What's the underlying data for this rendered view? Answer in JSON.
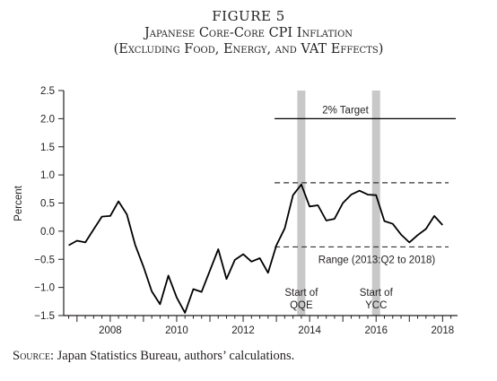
{
  "figure": {
    "label": "FIGURE 5",
    "title": "Japanese Core-Core CPI Inflation",
    "subtitle": "(Excluding Food, Energy, and VAT Effects)"
  },
  "source": {
    "label": "Source:",
    "text": "Japan Statistics Bureau, authors’ calculations."
  },
  "chart_data": {
    "type": "line",
    "ylabel": "Percent",
    "xlabel": "",
    "xlim": [
      2006.6,
      2018.45
    ],
    "ylim": [
      -1.5,
      2.5
    ],
    "x_ticks": [
      2008,
      2010,
      2012,
      2014,
      2016,
      2018
    ],
    "y_ticks": [
      -1.5,
      -1.0,
      -0.5,
      0.0,
      0.5,
      1.0,
      1.5,
      2.0,
      2.5
    ],
    "y_tick_labels": [
      "−1.5",
      "−1.0",
      "−0.5",
      "0.0",
      "0.5",
      "1.0",
      "1.5",
      "2.0",
      "2.5"
    ],
    "grid": false,
    "series": [
      {
        "name": "",
        "color": "#000000",
        "x": [
          2006.75,
          2007.0,
          2007.25,
          2007.5,
          2007.75,
          2008.0,
          2008.25,
          2008.5,
          2008.75,
          2009.0,
          2009.25,
          2009.5,
          2009.75,
          2010.0,
          2010.25,
          2010.5,
          2010.75,
          2011.0,
          2011.25,
          2011.5,
          2011.75,
          2012.0,
          2012.25,
          2012.5,
          2012.75,
          2013.0,
          2013.25,
          2013.5,
          2013.75,
          2014.0,
          2014.25,
          2014.5,
          2014.75,
          2015.0,
          2015.25,
          2015.5,
          2015.75,
          2016.0,
          2016.25,
          2016.5,
          2016.75,
          2017.0,
          2017.25,
          2017.5,
          2017.75,
          2018.0
        ],
        "y": [
          -0.25,
          -0.17,
          -0.2,
          0.03,
          0.26,
          0.27,
          0.53,
          0.3,
          -0.24,
          -0.63,
          -1.07,
          -1.3,
          -0.79,
          -1.18,
          -1.45,
          -1.03,
          -1.08,
          -0.7,
          -0.32,
          -0.85,
          -0.51,
          -0.41,
          -0.54,
          -0.48,
          -0.74,
          -0.25,
          0.05,
          0.64,
          0.83,
          0.44,
          0.46,
          0.19,
          0.22,
          0.5,
          0.65,
          0.72,
          0.65,
          0.64,
          0.18,
          0.13,
          -0.06,
          -0.2,
          -0.07,
          0.04,
          0.27,
          0.11
        ]
      }
    ],
    "target_line": {
      "y": 2.0,
      "x_start": 2013.0,
      "label": "2% Target"
    },
    "range_lines": {
      "upper": 0.86,
      "lower": -0.28,
      "x_start": 2013.0,
      "label": "Range (2013:Q2 to 2018)"
    },
    "shaded_periods": [
      {
        "x": 2013.75,
        "label_line1": "Start of",
        "label_line2": "QQE"
      },
      {
        "x": 2016.0,
        "label_line1": "Start of",
        "label_line2": "YCC"
      }
    ],
    "shade_color": "#c8c8c8",
    "axis_color": "#231f20"
  }
}
